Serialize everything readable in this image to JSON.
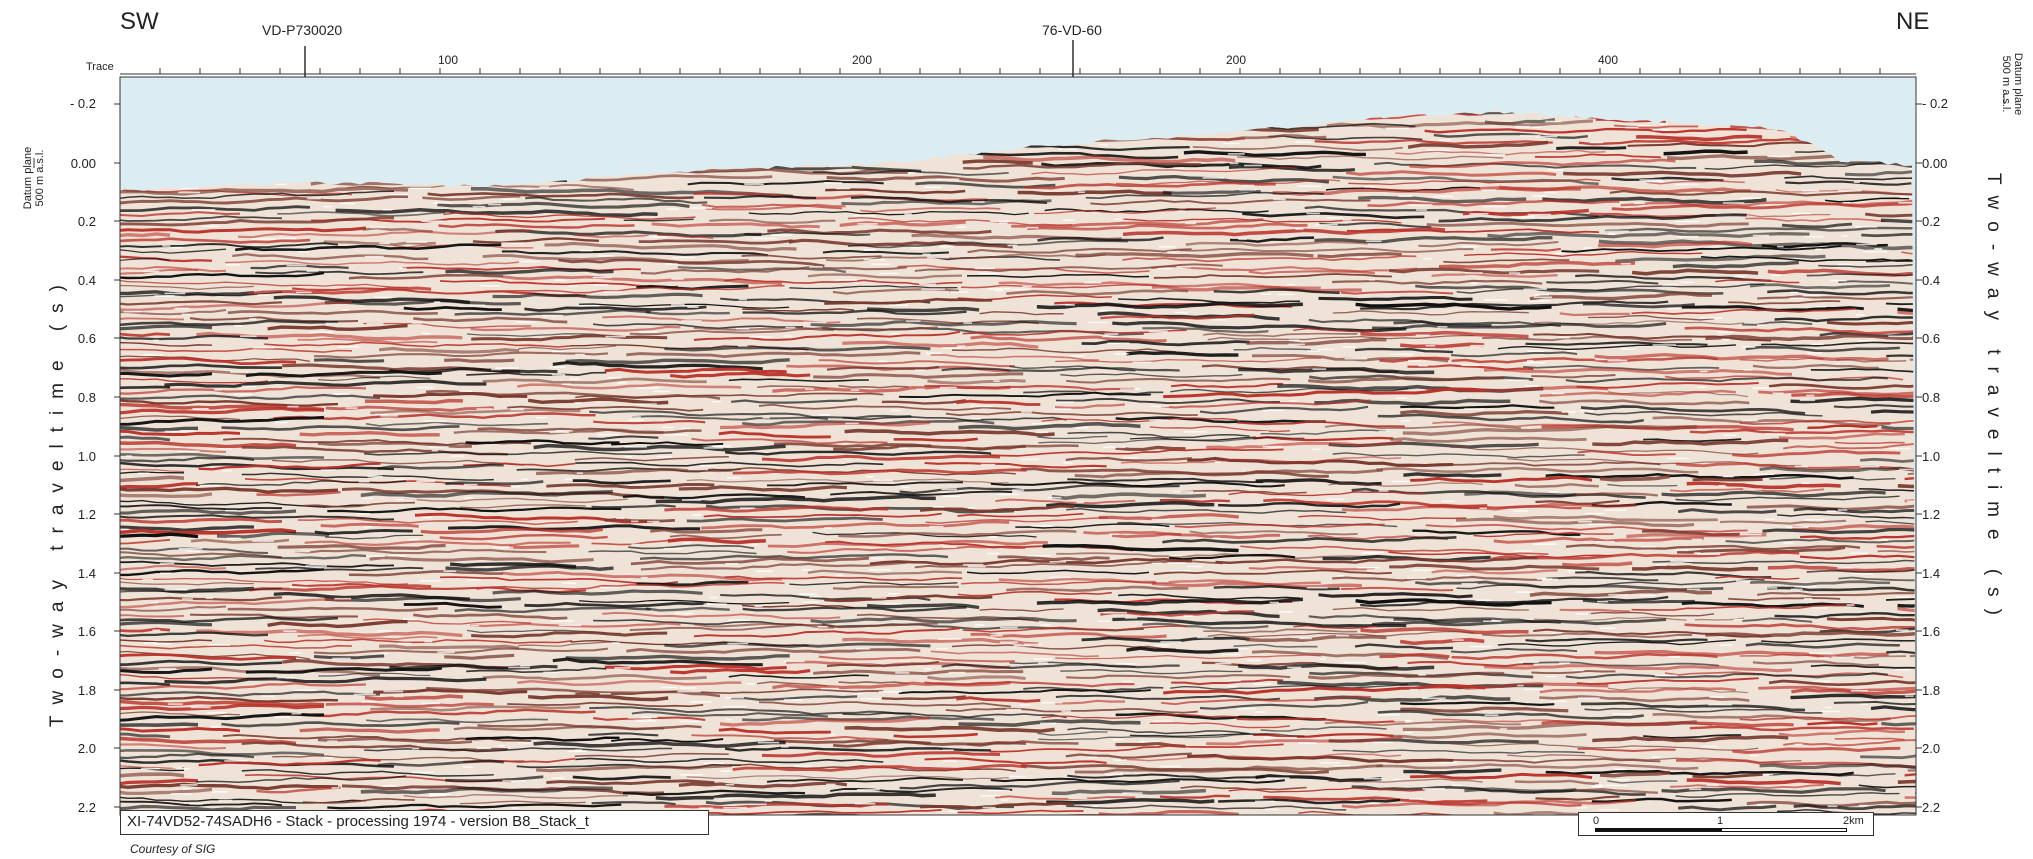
{
  "header": {
    "left_direction": "SW",
    "right_direction": "NE",
    "trace_label": "Trace",
    "wells": [
      {
        "name": "VD-P730020"
      },
      {
        "name": "76-VD-60"
      }
    ],
    "trace_ticks": [
      "100",
      "200",
      "200",
      "400"
    ]
  },
  "axes": {
    "left_title": "Two-way traveltime (s)",
    "right_title": "Two-way traveltime (s)",
    "datum_line1": "Datum plane",
    "datum_line2": "500 m a.s.l.",
    "y_ticks": [
      "- 0.2",
      "0.00",
      "0.2",
      "0.4",
      "0.6",
      "0.8",
      "1.0",
      "1.2",
      "1.4",
      "1.6",
      "1.8",
      "2.0",
      "2.2"
    ]
  },
  "caption": "XI-74VD52-74SADH6 - Stack - processing 1974 - version B8_Stack_t",
  "courtesy": "Courtesy of SIG",
  "scale_bar": {
    "labels": [
      "0",
      "1",
      "2km"
    ]
  },
  "colors": {
    "sky": "#dcecf3",
    "trough": "#111111",
    "peak": "#b9322a",
    "ground": "#efe2d6"
  }
}
